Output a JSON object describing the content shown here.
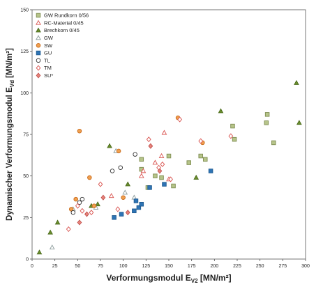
{
  "chart_data": {
    "type": "scatter",
    "xlabel": "Verformungsmodul E",
    "xlabel_sub": "V2",
    "xlabel_unit": " [MN/m²]",
    "ylabel": "Dynamischer Verformungsmodul E",
    "ylabel_sub": "Vd",
    "ylabel_unit": " [MN/m²]",
    "xlim": [
      0,
      300
    ],
    "ylim": [
      0,
      150
    ],
    "xticks": [
      0,
      25,
      50,
      75,
      100,
      125,
      150,
      175,
      200,
      225,
      250,
      275,
      300
    ],
    "yticks": [
      0,
      25,
      50,
      75,
      100,
      125,
      150
    ],
    "grid": false,
    "legend_position": "top-left",
    "series": [
      {
        "name": "GW Rundkorn 0/56",
        "marker": "square",
        "fill": "#b6c489",
        "stroke": "#7f8d52",
        "points": [
          [
            120,
            54
          ],
          [
            127,
            43
          ],
          [
            135,
            50
          ],
          [
            142,
            49
          ],
          [
            150,
            62
          ],
          [
            155,
            44
          ],
          [
            172,
            58
          ],
          [
            185,
            62
          ],
          [
            190,
            60
          ],
          [
            220,
            80
          ],
          [
            222,
            72
          ],
          [
            257,
            82
          ],
          [
            258,
            87
          ],
          [
            265,
            70
          ],
          [
            120,
            60
          ]
        ]
      },
      {
        "name": "RC-Material 0/45",
        "marker": "triangle",
        "fill": "#ffffff",
        "stroke": "#d9534f",
        "points": [
          [
            87,
            38
          ],
          [
            120,
            50
          ],
          [
            122,
            53
          ],
          [
            135,
            58
          ],
          [
            142,
            62
          ],
          [
            145,
            76
          ],
          [
            150,
            48
          ]
        ]
      },
      {
        "name": "Brechkorn 0/45",
        "marker": "triangle",
        "fill": "#6b8e2e",
        "stroke": "#4a6a1a",
        "points": [
          [
            8,
            4
          ],
          [
            20,
            16
          ],
          [
            28,
            22
          ],
          [
            65,
            32
          ],
          [
            72,
            33
          ],
          [
            85,
            68
          ],
          [
            105,
            45
          ],
          [
            180,
            49
          ],
          [
            207,
            89
          ],
          [
            290,
            106
          ],
          [
            293,
            82
          ]
        ]
      },
      {
        "name": "GW",
        "marker": "triangle",
        "fill": "#ffffff",
        "stroke": "#8a9a9a",
        "points": [
          [
            22,
            7
          ],
          [
            45,
            30
          ],
          [
            70,
            31
          ],
          [
            92,
            65
          ],
          [
            102,
            40
          ],
          [
            112,
            37
          ]
        ]
      },
      {
        "name": "SW",
        "marker": "circle",
        "fill": "#f0a050",
        "stroke": "#c96a1a",
        "points": [
          [
            43,
            30
          ],
          [
            48,
            36
          ],
          [
            52,
            77
          ],
          [
            63,
            49
          ],
          [
            68,
            32
          ],
          [
            95,
            65
          ],
          [
            100,
            37
          ],
          [
            160,
            85
          ],
          [
            187,
            70
          ]
        ]
      },
      {
        "name": "GU",
        "marker": "square",
        "fill": "#2e74b5",
        "stroke": "#1f5a8f",
        "points": [
          [
            90,
            25
          ],
          [
            98,
            27
          ],
          [
            112,
            29
          ],
          [
            114,
            35
          ],
          [
            117,
            31
          ],
          [
            120,
            33
          ],
          [
            129,
            43
          ],
          [
            145,
            45
          ],
          [
            196,
            53
          ]
        ]
      },
      {
        "name": "TL",
        "marker": "circle",
        "fill": "#ffffff",
        "stroke": "#333333",
        "points": [
          [
            45,
            28
          ],
          [
            52,
            34
          ],
          [
            55,
            36
          ],
          [
            88,
            53
          ],
          [
            97,
            55
          ],
          [
            113,
            63
          ]
        ]
      },
      {
        "name": "TM",
        "marker": "diamond",
        "fill": "#ffffff",
        "stroke": "#d9534f",
        "points": [
          [
            40,
            18
          ],
          [
            50,
            32
          ],
          [
            55,
            29
          ],
          [
            65,
            28
          ],
          [
            75,
            45
          ],
          [
            94,
            30
          ],
          [
            128,
            72
          ],
          [
            139,
            55
          ],
          [
            143,
            57
          ],
          [
            152,
            48
          ],
          [
            162,
            84
          ],
          [
            185,
            71
          ],
          [
            218,
            74
          ]
        ]
      },
      {
        "name": "SU*",
        "marker": "diamond",
        "fill": "#e8857c",
        "stroke": "#c0504d",
        "points": [
          [
            52,
            22
          ],
          [
            60,
            27
          ],
          [
            78,
            37
          ],
          [
            105,
            28
          ],
          [
            130,
            68
          ],
          [
            140,
            53
          ]
        ]
      }
    ]
  }
}
